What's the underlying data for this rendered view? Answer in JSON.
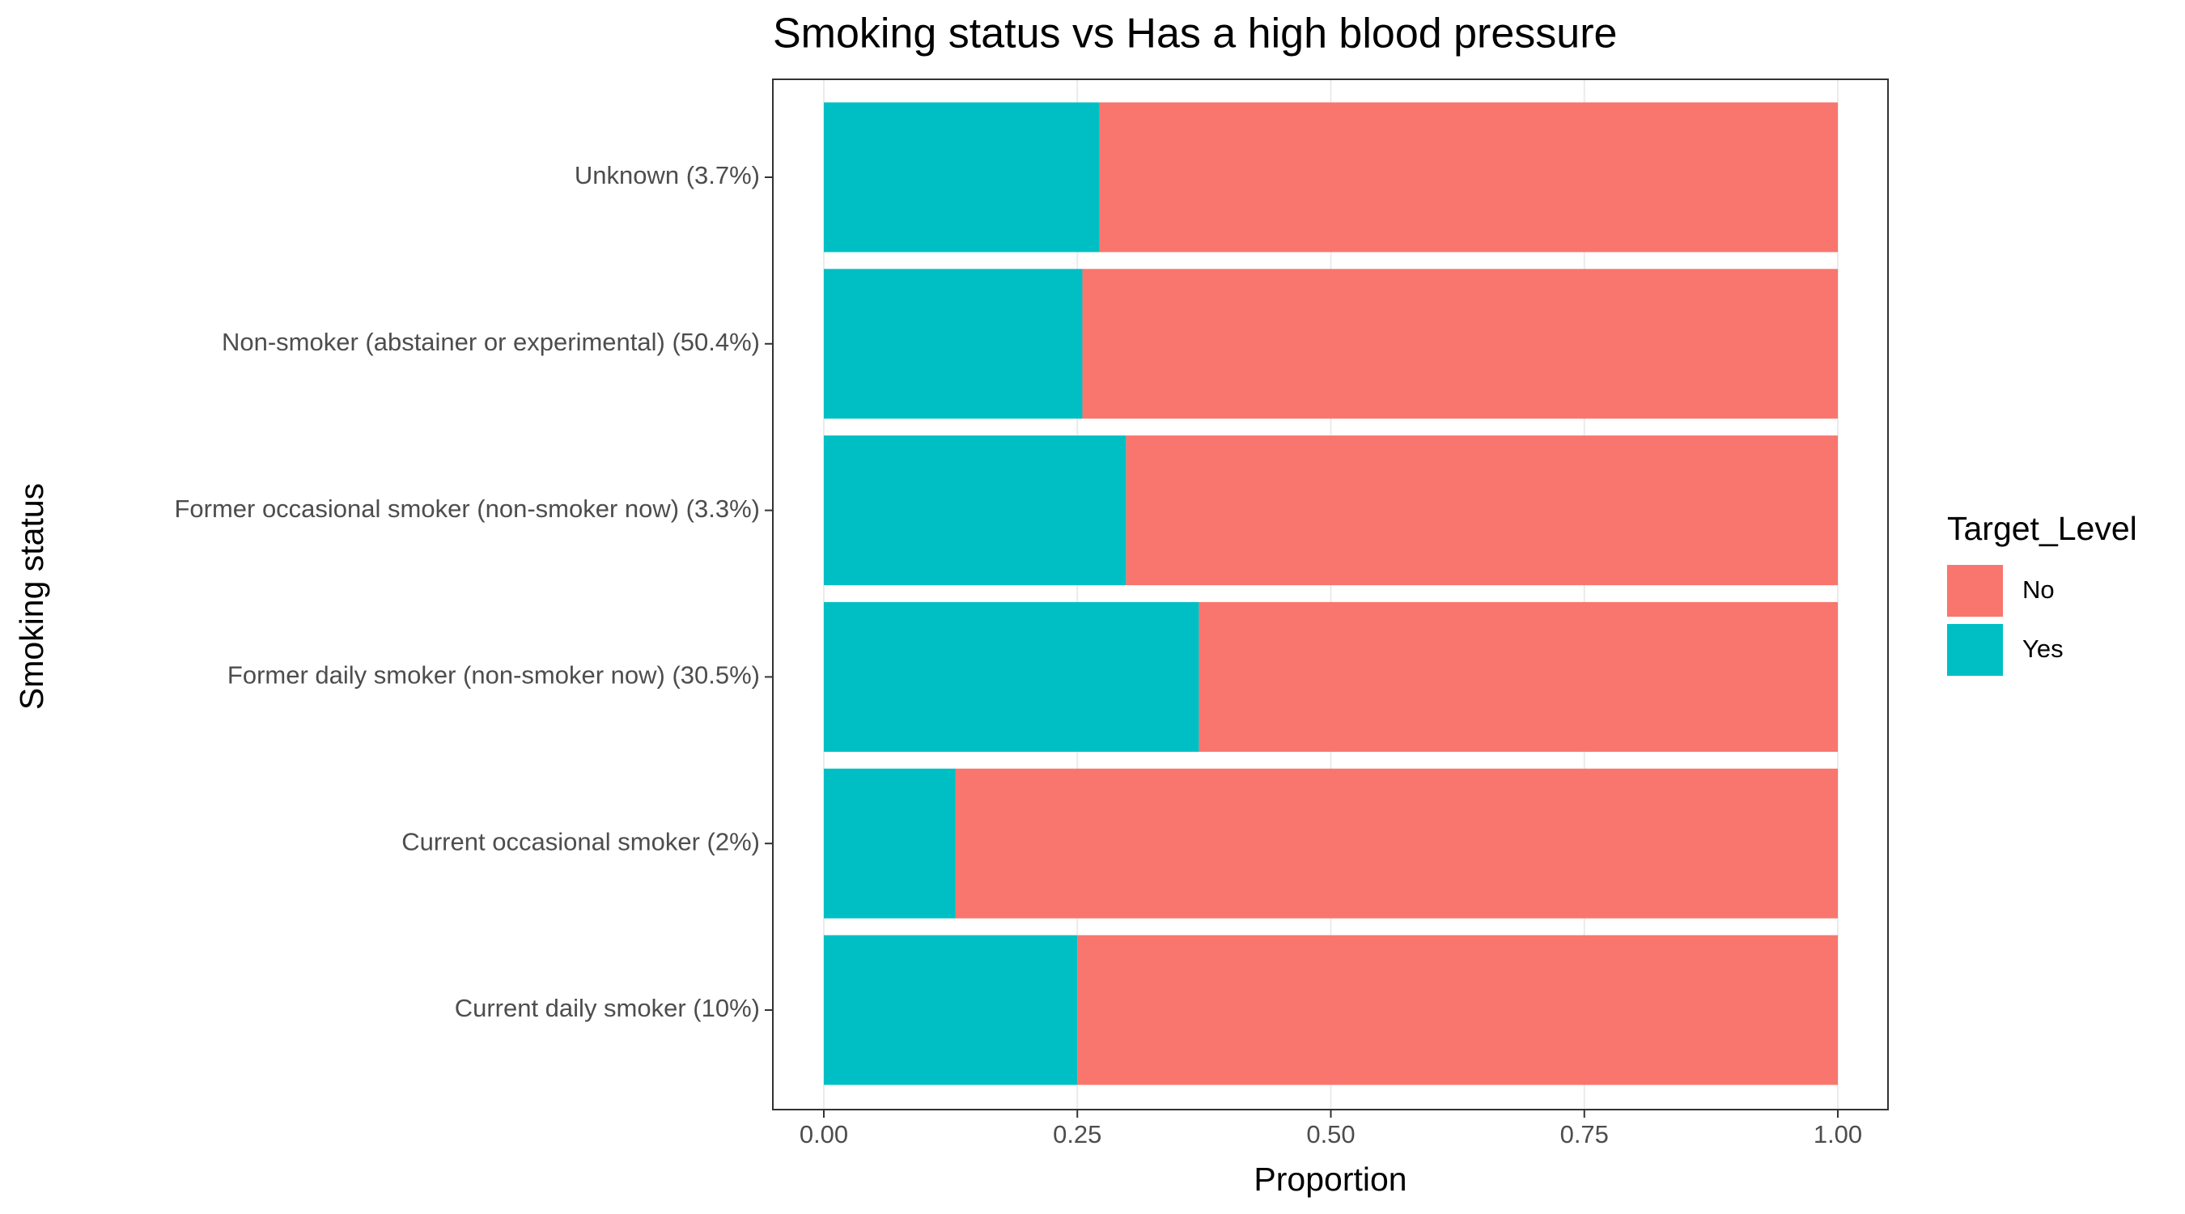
{
  "chart_data": {
    "type": "stacked_barh",
    "title": "Smoking status vs Has a high blood pressure",
    "x_label": "Proportion",
    "y_label": "Smoking status",
    "legend_title": "Target_Level",
    "legend_position": "right",
    "grid": true,
    "categories": [
      "Unknown (3.7%)",
      "Non-smoker (abstainer or experimental) (50.4%)",
      "Former occasional smoker (non-smoker now) (3.3%)",
      "Former daily smoker (non-smoker now) (30.5%)",
      "Current occasional smoker (2%)",
      "Current daily smoker (10%)"
    ],
    "series": [
      {
        "name": "No",
        "color": "#f8766d",
        "values": [
          0.728,
          0.745,
          0.702,
          0.63,
          0.87,
          0.75
        ]
      },
      {
        "name": "Yes",
        "color": "#00bfc4",
        "values": [
          0.272,
          0.255,
          0.298,
          0.37,
          0.13,
          0.25
        ]
      }
    ],
    "xlim": [
      0,
      1
    ],
    "xticks": [
      {
        "value": 0,
        "label": "0.00"
      },
      {
        "value": 0.25,
        "label": "0.25"
      },
      {
        "value": 0.5,
        "label": "0.50"
      },
      {
        "value": 0.75,
        "label": "0.75"
      },
      {
        "value": 1,
        "label": "1.00"
      }
    ]
  }
}
